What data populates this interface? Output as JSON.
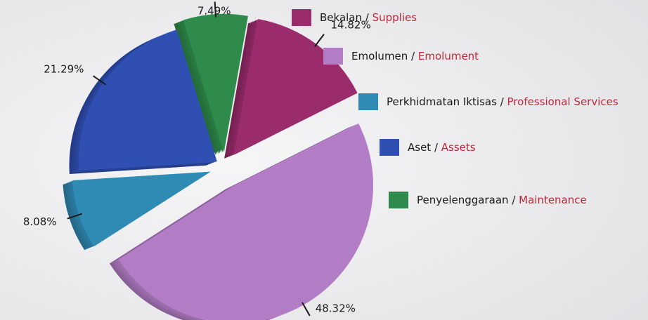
{
  "chart_data": {
    "type": "pie",
    "categories": [
      "Bekalan / Supplies",
      "Emolumen / Emolument",
      "Perkhidmatan Iktisas / Professional Services",
      "Aset / Assets",
      "Penyelenggaraan / Maintenance"
    ],
    "values": [
      14.82,
      48.32,
      8.08,
      21.29,
      7.49
    ],
    "value_labels": [
      "14.82%",
      "48.32%",
      "8.08%",
      "21.29%",
      "7.49%"
    ],
    "colors": [
      "#9a2c6c",
      "#b37dc6",
      "#2f8ab4",
      "#2f4fb2",
      "#2e8b4b"
    ],
    "legend": "right"
  }
}
